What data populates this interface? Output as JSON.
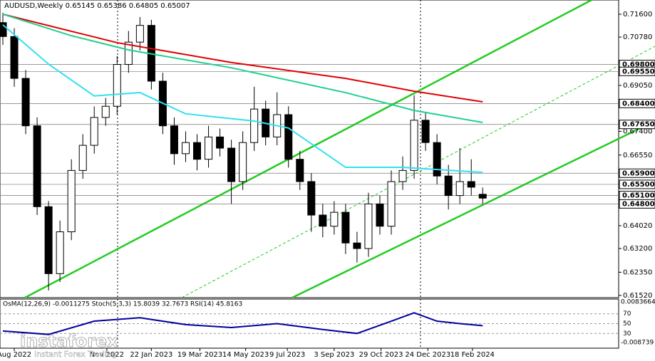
{
  "chart_data": {
    "type": "candlestick",
    "title": "AUDUSD,Weekly  0.65145 0.65386 0.64805 0.65007",
    "open": [
      0.713,
      0.708,
      0.693,
      0.676,
      0.647,
      0.623,
      0.638,
      0.66,
      0.669,
      0.679,
      0.683,
      0.698,
      0.706,
      0.712,
      0.692,
      0.676,
      0.666,
      0.67,
      0.664,
      0.672,
      0.668,
      0.656,
      0.67,
      0.682,
      0.672,
      0.68,
      0.664,
      0.656,
      0.644,
      0.64,
      0.645,
      0.634,
      0.632,
      0.648,
      0.64,
      0.656,
      0.66,
      0.678,
      0.67,
      0.658,
      0.651,
      0.656,
      0.65145
    ],
    "high": [
      0.7165,
      0.711,
      0.696,
      0.679,
      0.649,
      0.642,
      0.664,
      0.673,
      0.683,
      0.686,
      0.701,
      0.71,
      0.715,
      0.714,
      0.695,
      0.679,
      0.674,
      0.673,
      0.676,
      0.675,
      0.671,
      0.674,
      0.69,
      0.685,
      0.688,
      0.683,
      0.667,
      0.659,
      0.648,
      0.649,
      0.648,
      0.638,
      0.652,
      0.651,
      0.66,
      0.665,
      0.687,
      0.681,
      0.673,
      0.662,
      0.668,
      0.664,
      0.65386
    ],
    "low": [
      0.705,
      0.69,
      0.673,
      0.644,
      0.617,
      0.62,
      0.635,
      0.657,
      0.666,
      0.676,
      0.68,
      0.695,
      0.703,
      0.689,
      0.673,
      0.662,
      0.663,
      0.66,
      0.661,
      0.665,
      0.648,
      0.653,
      0.667,
      0.669,
      0.669,
      0.661,
      0.653,
      0.638,
      0.636,
      0.637,
      0.63,
      0.627,
      0.629,
      0.637,
      0.637,
      0.653,
      0.657,
      0.667,
      0.655,
      0.646,
      0.648,
      0.651,
      0.64805
    ],
    "close": [
      0.708,
      0.693,
      0.676,
      0.647,
      0.623,
      0.638,
      0.66,
      0.669,
      0.679,
      0.683,
      0.698,
      0.706,
      0.712,
      0.692,
      0.676,
      0.666,
      0.67,
      0.664,
      0.672,
      0.668,
      0.656,
      0.67,
      0.682,
      0.672,
      0.68,
      0.664,
      0.656,
      0.644,
      0.64,
      0.645,
      0.634,
      0.632,
      0.648,
      0.64,
      0.656,
      0.66,
      0.678,
      0.67,
      0.658,
      0.651,
      0.656,
      0.654,
      0.65007
    ],
    "moving_averages": [
      {
        "color": "#e00000",
        "x": [
          0,
          10,
          20,
          30,
          36,
          42
        ],
        "values": [
          0.716,
          0.7058,
          0.6987,
          0.693,
          0.6884,
          0.6846
        ]
      },
      {
        "color": "#20d090",
        "x": [
          0,
          6,
          11,
          20,
          30,
          36,
          42
        ],
        "values": [
          0.716,
          0.7083,
          0.7032,
          0.6968,
          0.6879,
          0.6815,
          0.6772
        ]
      },
      {
        "color": "#30e0f0",
        "x": [
          0,
          4,
          8,
          12,
          16,
          22,
          25,
          30,
          35,
          42
        ],
        "values": [
          0.7122,
          0.6981,
          0.6867,
          0.6879,
          0.6803,
          0.6777,
          0.6752,
          0.6611,
          0.6611,
          0.6593
        ]
      }
    ],
    "ylim": [
      0.6144,
      0.7211
    ],
    "yticks": [
      {
        "value": 0.716,
        "label": "0.71600"
      },
      {
        "value": 0.7078,
        "label": "0.70780"
      },
      {
        "value": 0.6905,
        "label": "0.69050"
      },
      {
        "value": 0.674,
        "label": "0.67400"
      },
      {
        "value": 0.6655,
        "label": "0.66550"
      },
      {
        "value": 0.6402,
        "label": "0.64020"
      },
      {
        "value": 0.632,
        "label": "0.63200"
      },
      {
        "value": 0.6235,
        "label": "0.62350"
      },
      {
        "value": 0.6152,
        "label": "0.61520"
      }
    ],
    "levels": [
      {
        "value": 0.698,
        "label": "0.69800"
      },
      {
        "value": 0.6955,
        "label": "0.69550"
      },
      {
        "value": 0.684,
        "label": "0.68400"
      },
      {
        "value": 0.6765,
        "label": "0.67650"
      },
      {
        "value": 0.659,
        "label": "0.65900"
      },
      {
        "value": 0.655,
        "label": "0.65500"
      },
      {
        "value": 0.651,
        "label": "0.65100"
      },
      {
        "value": 0.648,
        "label": "0.64800"
      }
    ],
    "xlim": [
      -0.25,
      53.9
    ],
    "xticks": [
      {
        "value": 1,
        "label": "Aug 2022"
      },
      {
        "value": 9.1,
        "label": "Nov 2022"
      },
      {
        "value": 13,
        "label": "22 Jan 2023"
      },
      {
        "value": 17.25,
        "label": "19 Mar 2023"
      },
      {
        "value": 21.25,
        "label": "14 May 2023"
      },
      {
        "value": 24.9,
        "label": "9 Jul 2023"
      },
      {
        "value": 29,
        "label": "3 Sep 2023"
      },
      {
        "value": 33.1,
        "label": "29 Oct 2023"
      },
      {
        "value": 37.2,
        "label": "24 Dec 2023"
      },
      {
        "value": 41.1,
        "label": "18 Feb 2024"
      }
    ],
    "indicator": {
      "title": "OsMA(12,26,9) -0.0011275  Stoch(5,3,3) 15.8039 32.7673  RSI(14) 45.8163",
      "ylim": [
        0,
        100
      ],
      "yticks": [
        70,
        50,
        30
      ],
      "top_label": "0.0083664",
      "bottom_label": "-0.008739",
      "rsi": {
        "color": "#0000a0",
        "x": [
          0,
          4,
          8,
          12,
          16,
          20,
          24,
          28,
          31,
          34,
          36,
          38,
          40,
          42
        ],
        "values": [
          35,
          28,
          55,
          62,
          48,
          42,
          50,
          38,
          30,
          55,
          72,
          55,
          50,
          45.8163
        ]
      }
    },
    "watermark": "instaforex",
    "watermark_tagline": "Instant Forex Trading"
  }
}
